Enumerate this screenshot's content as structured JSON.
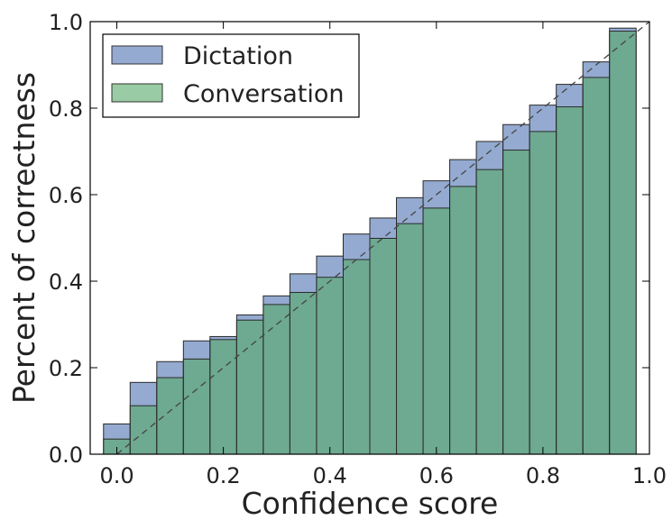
{
  "chart_data": {
    "type": "bar",
    "title": "",
    "xlabel": "Confidence score",
    "ylabel": "Percent of correctness",
    "xlim": [
      -0.05,
      1.0
    ],
    "ylim": [
      0.0,
      1.0
    ],
    "xticks": [
      "0.0",
      "0.2",
      "0.4",
      "0.6",
      "0.8",
      "1.0"
    ],
    "yticks": [
      "0.0",
      "0.2",
      "0.4",
      "0.6",
      "0.8",
      "1.0"
    ],
    "grid": false,
    "legend_position": "top-left",
    "bin_edges": [
      -0.025,
      0.025,
      0.075,
      0.125,
      0.175,
      0.225,
      0.275,
      0.325,
      0.375,
      0.425,
      0.475,
      0.525,
      0.575,
      0.625,
      0.675,
      0.725,
      0.775,
      0.825,
      0.875,
      0.925,
      0.975
    ],
    "reference_line": {
      "style": "dashed",
      "from": [
        0,
        0
      ],
      "to": [
        1,
        1
      ]
    },
    "series": [
      {
        "name": "Dictation",
        "color": "#4c72b0",
        "values": [
          0.07,
          0.166,
          0.214,
          0.262,
          0.272,
          0.322,
          0.366,
          0.417,
          0.458,
          0.509,
          0.546,
          0.593,
          0.632,
          0.681,
          0.723,
          0.762,
          0.807,
          0.855,
          0.907,
          0.985
        ]
      },
      {
        "name": "Conversation",
        "color": "#55a868",
        "values": [
          0.035,
          0.112,
          0.177,
          0.22,
          0.265,
          0.31,
          0.346,
          0.374,
          0.409,
          0.45,
          0.499,
          0.533,
          0.569,
          0.619,
          0.658,
          0.703,
          0.746,
          0.803,
          0.871,
          0.978
        ]
      }
    ]
  }
}
